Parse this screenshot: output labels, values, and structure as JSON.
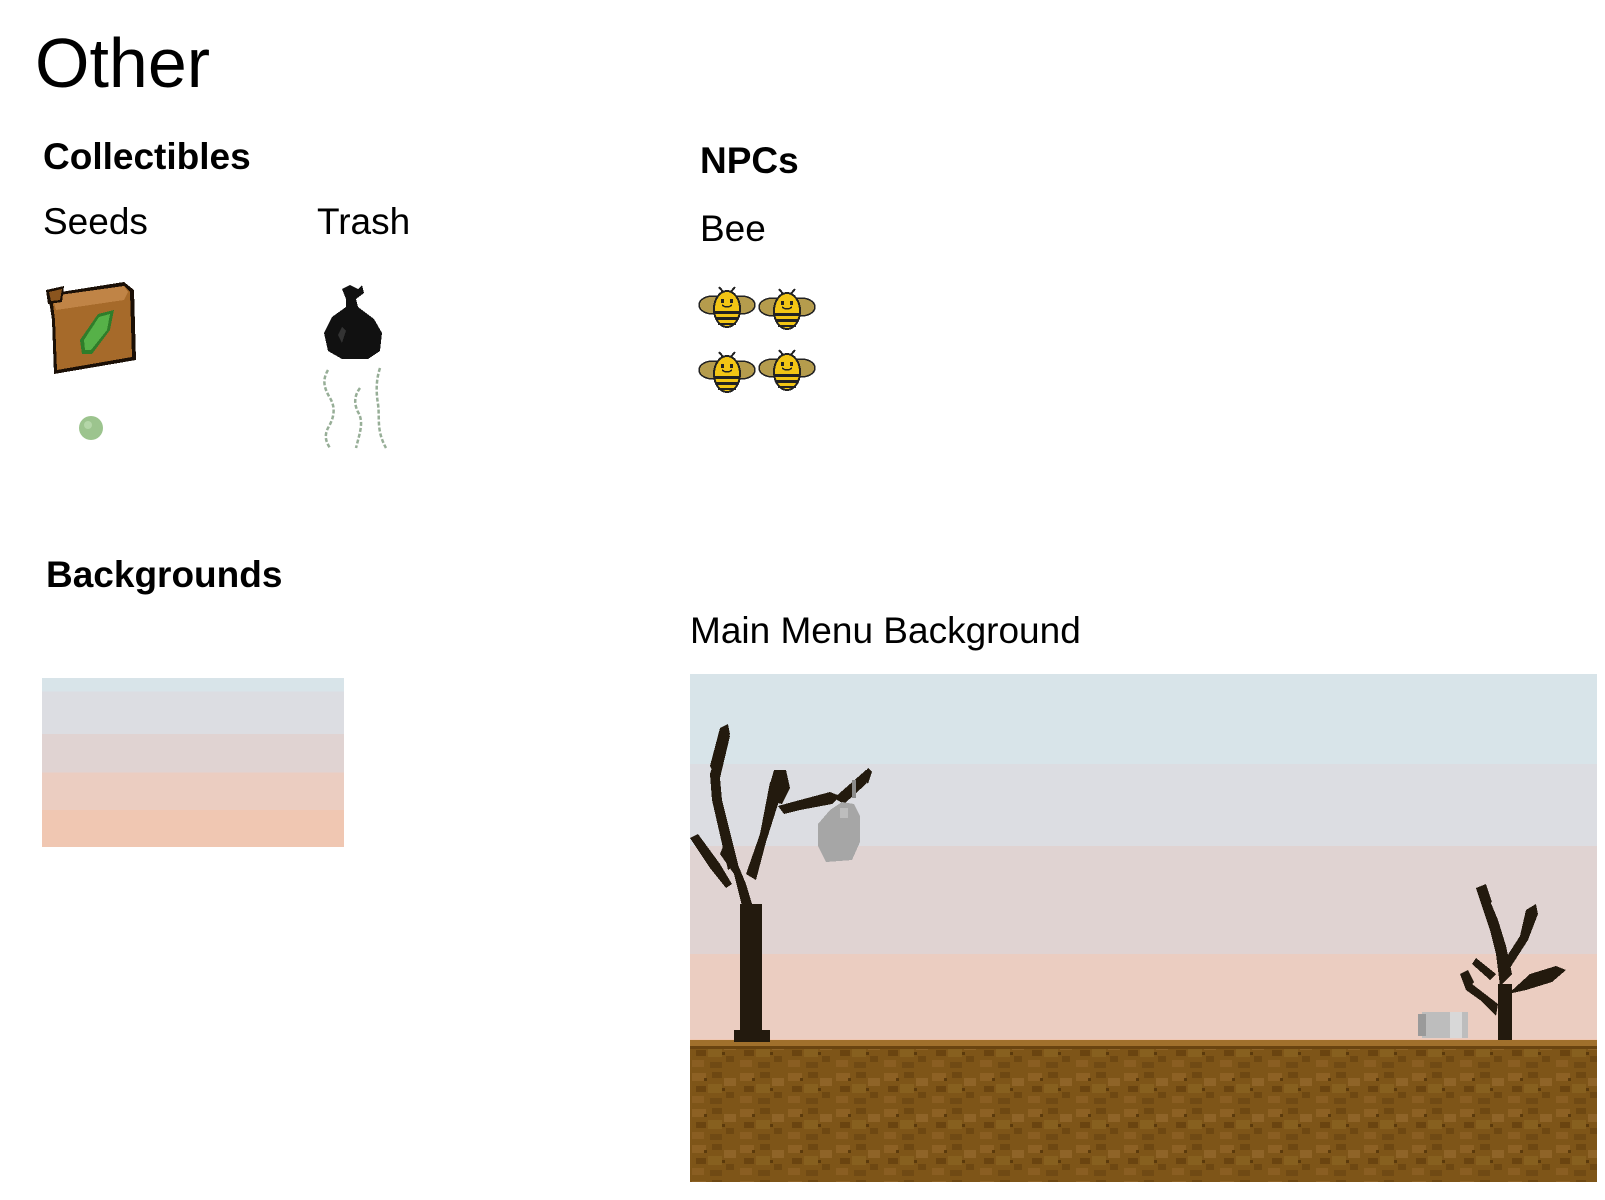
{
  "page": {
    "title": "Other"
  },
  "collectibles": {
    "heading": "Collectibles",
    "items": [
      {
        "label": "Seeds",
        "icons": [
          "seed-packet-icon",
          "seed-icon"
        ]
      },
      {
        "label": "Trash",
        "icons": [
          "trash-bag-icon",
          "stink-lines-icon"
        ]
      }
    ]
  },
  "npcs": {
    "heading": "NPCs",
    "items": [
      {
        "label": "Bee",
        "sprite_count": 4,
        "icons": [
          "bee-icon"
        ]
      }
    ]
  },
  "backgrounds": {
    "heading": "Backgrounds",
    "items": [
      {
        "label": "",
        "icons": [
          "sky-gradient"
        ]
      },
      {
        "label": "Main Menu Background",
        "icons": [
          "dead-tree-icon",
          "hanging-trash-bag-icon",
          "can-icon",
          "dirt-ground"
        ]
      }
    ]
  },
  "colors": {
    "sky_top": "#d8e4e9",
    "sky_bottom": "#f0c7b2",
    "dirt": "#7e5518",
    "tree": "#231a0e",
    "seed_green": "#9cc48e",
    "bee_yellow": "#f2c514",
    "packet_brown": "#a66a2a"
  }
}
